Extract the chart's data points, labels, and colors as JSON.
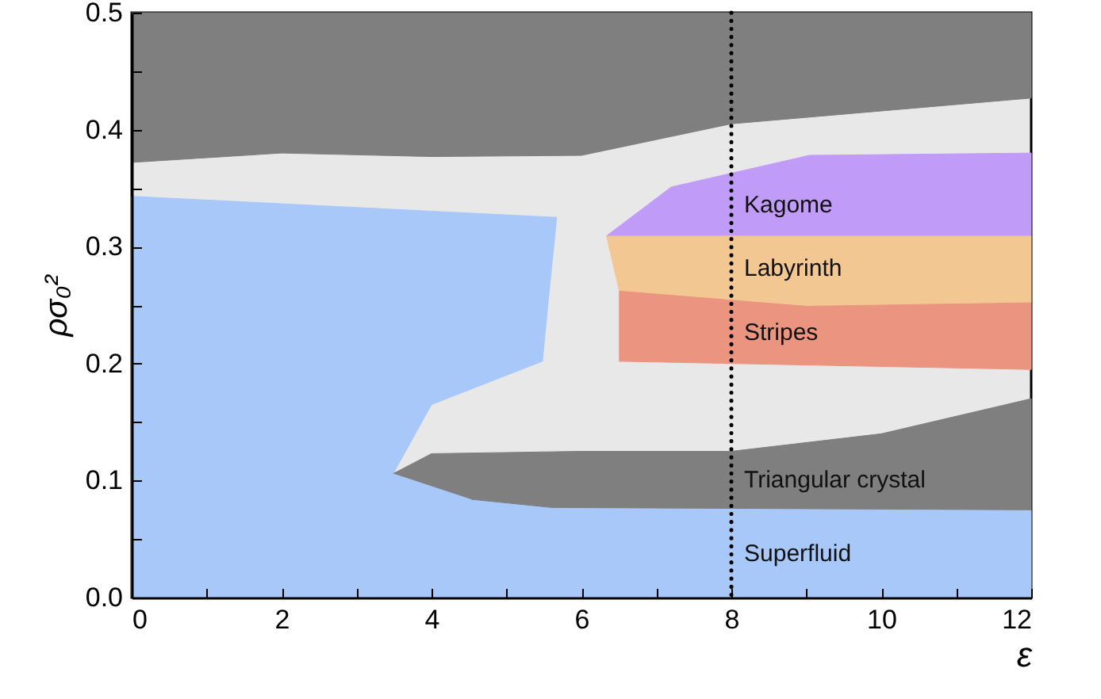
{
  "chart_data": {
    "type": "area",
    "xlabel": "ε",
    "ylabel": "ρσ₀²",
    "xlim": [
      0,
      12
    ],
    "ylim": [
      0,
      0.5
    ],
    "xticks": [
      0,
      {
        "value": 1,
        "label": null
      },
      2,
      {
        "value": 3,
        "label": null
      },
      4,
      {
        "value": 5,
        "label": null
      },
      6,
      {
        "value": 7,
        "label": null
      },
      8,
      {
        "value": 9,
        "label": null
      },
      10,
      {
        "value": 11,
        "label": null
      },
      12
    ],
    "yticks": [
      {
        "value": 0,
        "label": "0.0"
      },
      {
        "value": 0.05,
        "label": null
      },
      {
        "value": 0.1,
        "label": "0.1"
      },
      {
        "value": 0.15,
        "label": null
      },
      {
        "value": 0.2,
        "label": "0.2"
      },
      {
        "value": 0.25,
        "label": null
      },
      {
        "value": 0.3,
        "label": "0.3"
      },
      {
        "value": 0.35,
        "label": null
      },
      {
        "value": 0.4,
        "label": "0.4"
      },
      {
        "value": 0.45,
        "label": null
      },
      {
        "value": 0.5,
        "label": "0.5"
      }
    ],
    "grid": false,
    "series": [
      {
        "color": "#7f7f7f",
        "x": [
          0,
          2,
          4,
          6,
          8,
          12,
          12,
          0
        ],
        "values": [
          0.372,
          0.38,
          0.377,
          0.378,
          0.405,
          0.427,
          0.5,
          0.5
        ]
      },
      {
        "name": "Superfluid",
        "color": "#a8c8fa",
        "x": [
          0,
          0,
          5.67,
          5.55,
          5.48,
          4,
          3.49,
          4.53,
          5.6,
          12,
          12
        ],
        "values": [
          0,
          0.343,
          0.325,
          0.249,
          0.202,
          0.165,
          0.106,
          0.084,
          0.077,
          0.075,
          0
        ]
      },
      {
        "name": "Triangular crystal",
        "color": "#7f7f7f",
        "x": [
          3.49,
          4,
          6,
          8,
          10,
          12,
          12,
          5.6,
          4.53
        ],
        "values": [
          0.106,
          0.123,
          0.125,
          0.125,
          0.14,
          0.17,
          0.075,
          0.077,
          0.084
        ]
      },
      {
        "name": "Kagome",
        "color": "#c09cf8",
        "x": [
          6.33,
          7.2,
          9.04,
          12,
          12
        ],
        "values": [
          0.309,
          0.351,
          0.378,
          0.38,
          0.309
        ]
      },
      {
        "name": "Labyrinth",
        "color": "#f2c791",
        "x": [
          6.33,
          12,
          12,
          9,
          6.5
        ],
        "values": [
          0.309,
          0.309,
          0.252,
          0.249,
          0.262
        ]
      },
      {
        "name": "Stripes",
        "color": "#eb9580",
        "x": [
          6.5,
          9,
          12,
          12,
          6.5
        ],
        "values": [
          0.262,
          0.249,
          0.252,
          0.195,
          0.202
        ]
      }
    ],
    "ref_lines": [
      {
        "axis": "x",
        "value": 8,
        "line_style": "dotted",
        "color": "#000000"
      }
    ]
  }
}
